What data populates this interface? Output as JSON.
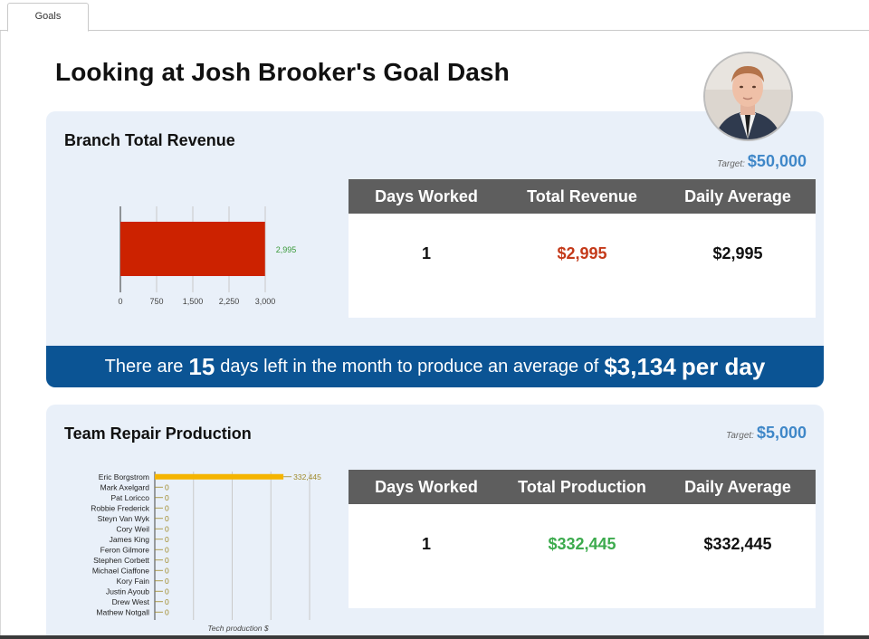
{
  "tabs": [
    {
      "label": "Goals"
    }
  ],
  "header": {
    "title": "Looking at Josh Brooker's Goal Dash"
  },
  "revenue": {
    "title": "Branch Total Revenue",
    "target_label": "Target:",
    "target_value": "$50,000",
    "stats": {
      "headers": [
        "Days Worked",
        "Total Revenue",
        "Daily Average"
      ],
      "values": [
        "1",
        "$2,995",
        "$2,995"
      ],
      "total_color": "#c43a1a"
    },
    "banner": {
      "prefix": "There are",
      "days": "15",
      "middle": "days left in the month to produce an average of",
      "amount": "$3,134",
      "suffix": "per day"
    }
  },
  "production": {
    "title": "Team Repair Production",
    "target_label": "Target:",
    "target_value": "$5,000",
    "stats": {
      "headers": [
        "Days Worked",
        "Total Production",
        "Daily Average"
      ],
      "values": [
        "1",
        "$332,445",
        "$332,445"
      ],
      "total_color": "#3dab4e"
    }
  },
  "chart_data": [
    {
      "type": "bar",
      "orientation": "horizontal",
      "categories": [
        ""
      ],
      "values": [
        2995
      ],
      "data_labels": [
        "2,995"
      ],
      "xlim": [
        0,
        3000
      ],
      "xticks": [
        "0",
        "750",
        "1,500",
        "2,250",
        "3,000"
      ],
      "bar_color": "#cc2200",
      "label_color": "#3a9a3a",
      "grid": true
    },
    {
      "type": "bar",
      "orientation": "horizontal",
      "categories": [
        "Eric Borgstrom",
        "Mark Axelgard",
        "Pat Loricco",
        "Robbie Frederick",
        "Steyn Van Wyk",
        "Cory Weil",
        "James King",
        "Feron Gilmore",
        "Stephen Corbett",
        "Michael Ciaffone",
        "Kory Fain",
        "Justin Ayoub",
        "Drew West",
        "Mathew Notgall"
      ],
      "values": [
        332445,
        0,
        0,
        0,
        0,
        0,
        0,
        0,
        0,
        0,
        0,
        0,
        0,
        0
      ],
      "data_labels": [
        "332,445",
        "0",
        "0",
        "0",
        "0",
        "0",
        "0",
        "0",
        "0",
        "0",
        "0",
        "0",
        "0",
        "0"
      ],
      "xlabel": "Tech production $",
      "xlim": [
        0,
        400000
      ],
      "bar_color": "#f5b400",
      "label_color": "#a08a2a",
      "grid": true
    }
  ]
}
